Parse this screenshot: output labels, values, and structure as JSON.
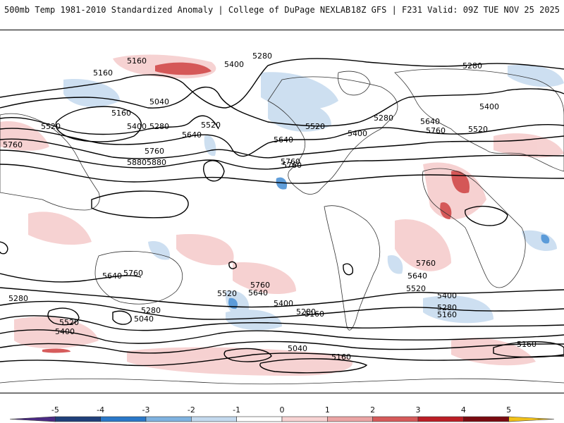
{
  "header": {
    "left_title": "500mb Temp 1981-2010 Standardized Anomaly | College of DuPage NEXLAB",
    "right_title": "18Z GFS | F231 Valid: 09Z TUE NOV 25 2025"
  },
  "contour_labels": [
    {
      "id": "c1",
      "text": "5160"
    },
    {
      "id": "c2",
      "text": "5280"
    },
    {
      "id": "c3",
      "text": "5400"
    },
    {
      "id": "c4",
      "text": "5160"
    },
    {
      "id": "c5",
      "text": "5040"
    },
    {
      "id": "c6",
      "text": "5160"
    },
    {
      "id": "c7",
      "text": "5520"
    },
    {
      "id": "c8",
      "text": "5400"
    },
    {
      "id": "c9",
      "text": "5280"
    },
    {
      "id": "c10",
      "text": "5640"
    },
    {
      "id": "c11",
      "text": "5520"
    },
    {
      "id": "c12",
      "text": "5760"
    },
    {
      "id": "c13",
      "text": "5760"
    },
    {
      "id": "c14",
      "text": "5880"
    },
    {
      "id": "c15",
      "text": "5640"
    },
    {
      "id": "c16",
      "text": "5760"
    },
    {
      "id": "c17",
      "text": "5520"
    },
    {
      "id": "c18",
      "text": "5400"
    },
    {
      "id": "c19",
      "text": "5280"
    },
    {
      "id": "c20",
      "text": "5280"
    },
    {
      "id": "c21",
      "text": "5640"
    },
    {
      "id": "c22",
      "text": "5760"
    },
    {
      "id": "c23",
      "text": "5520"
    },
    {
      "id": "c24",
      "text": "5400"
    },
    {
      "id": "c25",
      "text": "5880"
    },
    {
      "id": "c26",
      "text": "5640"
    },
    {
      "id": "c27",
      "text": "5760"
    },
    {
      "id": "c28",
      "text": "5760"
    },
    {
      "id": "c29",
      "text": "5640"
    },
    {
      "id": "c30",
      "text": "5520"
    },
    {
      "id": "c31",
      "text": "5400"
    },
    {
      "id": "c32",
      "text": "5280"
    },
    {
      "id": "c33",
      "text": "5160"
    },
    {
      "id": "c34",
      "text": "5760"
    },
    {
      "id": "c35",
      "text": "5640"
    },
    {
      "id": "c36",
      "text": "5520"
    },
    {
      "id": "c37",
      "text": "5400"
    },
    {
      "id": "c38",
      "text": "5280"
    },
    {
      "id": "c39",
      "text": "5160"
    },
    {
      "id": "c40",
      "text": "5280"
    },
    {
      "id": "c41",
      "text": "5520"
    },
    {
      "id": "c42",
      "text": "5400"
    },
    {
      "id": "c43",
      "text": "5280"
    },
    {
      "id": "c44",
      "text": "5040"
    },
    {
      "id": "c45",
      "text": "5040"
    },
    {
      "id": "c46",
      "text": "5160"
    },
    {
      "id": "c47",
      "text": "5160"
    },
    {
      "id": "c48",
      "text": "5760"
    }
  ],
  "colorbar": {
    "ticks": [
      "-5",
      "-4",
      "-3",
      "-2",
      "-1",
      "0",
      "1",
      "2",
      "3",
      "4",
      "5"
    ],
    "colors": [
      "#4b2a84",
      "#1f3f7a",
      "#2a78c8",
      "#7fb2e0",
      "#c3d9ee",
      "#ffffff",
      "#f7d3d3",
      "#eba4a4",
      "#d65a5a",
      "#bb1d25",
      "#7a0a10",
      "#f2c21a"
    ]
  }
}
